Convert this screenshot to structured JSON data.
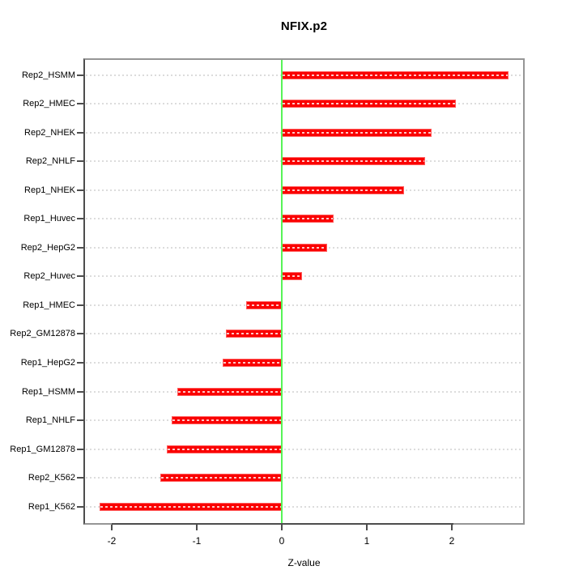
{
  "title": "NFIX.p2",
  "x_axis_label": "Z-value",
  "colors": {
    "bar_fill": "#fa0000",
    "bar_border": "#ff5c5c",
    "zero_line_green": "#57f357",
    "box_gray": "#969696",
    "axis_dark": "#4d4d4d",
    "row_guide_gray": "#dcdcdc"
  },
  "chart_data": {
    "type": "bar",
    "orientation": "horizontal",
    "title": "NFIX.p2",
    "xlabel": "Z-value",
    "ylabel": "",
    "categories": [
      "Rep2_HSMM",
      "Rep2_HMEC",
      "Rep2_NHEK",
      "Rep2_NHLF",
      "Rep1_NHEK",
      "Rep1_Huvec",
      "Rep2_HepG2",
      "Rep2_Huvec",
      "Rep1_HMEC",
      "Rep2_GM12878",
      "Rep1_HepG2",
      "Rep1_HSMM",
      "Rep1_NHLF",
      "Rep1_GM12878",
      "Rep2_K562",
      "Rep1_K562"
    ],
    "values": [
      2.67,
      2.05,
      1.76,
      1.69,
      1.44,
      0.61,
      0.53,
      0.24,
      -0.42,
      -0.66,
      -0.7,
      -1.23,
      -1.3,
      -1.35,
      -1.43,
      -2.14
    ],
    "x_ticks": [
      -2,
      -1,
      0,
      1,
      2
    ],
    "x_tick_labels": [
      "-2",
      "-1",
      "0",
      "1",
      "2"
    ],
    "xlim": [
      -2.33,
      2.86
    ],
    "zero_reference_line": 0,
    "grid": "dotted horizontal row guides",
    "legend": "none",
    "bar_color": "#ff0000"
  }
}
